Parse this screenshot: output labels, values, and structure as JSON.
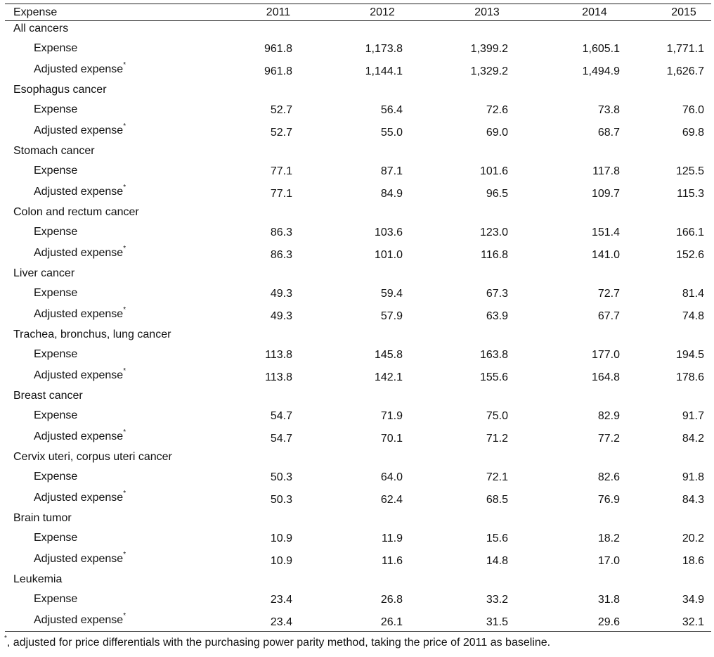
{
  "table": {
    "header": {
      "label": "Expense",
      "years": [
        "2011",
        "2012",
        "2013",
        "2014",
        "2015"
      ]
    },
    "expense_label": "Expense",
    "adjusted_label": "Adjusted expense",
    "asterisk": "*",
    "groups": [
      {
        "name": "All cancers",
        "expense": [
          "961.8",
          "1,173.8",
          "1,399.2",
          "1,605.1",
          "1,771.1"
        ],
        "adjusted": [
          "961.8",
          "1,144.1",
          "1,329.2",
          "1,494.9",
          "1,626.7"
        ]
      },
      {
        "name": "Esophagus cancer",
        "expense": [
          "52.7",
          "56.4",
          "72.6",
          "73.8",
          "76.0"
        ],
        "adjusted": [
          "52.7",
          "55.0",
          "69.0",
          "68.7",
          "69.8"
        ]
      },
      {
        "name": "Stomach cancer",
        "expense": [
          "77.1",
          "87.1",
          "101.6",
          "117.8",
          "125.5"
        ],
        "adjusted": [
          "77.1",
          "84.9",
          "96.5",
          "109.7",
          "115.3"
        ]
      },
      {
        "name": "Colon and rectum cancer",
        "expense": [
          "86.3",
          "103.6",
          "123.0",
          "151.4",
          "166.1"
        ],
        "adjusted": [
          "86.3",
          "101.0",
          "116.8",
          "141.0",
          "152.6"
        ]
      },
      {
        "name": "Liver cancer",
        "expense": [
          "49.3",
          "59.4",
          "67.3",
          "72.7",
          "81.4"
        ],
        "adjusted": [
          "49.3",
          "57.9",
          "63.9",
          "67.7",
          "74.8"
        ]
      },
      {
        "name": "Trachea, bronchus, lung cancer",
        "expense": [
          "113.8",
          "145.8",
          "163.8",
          "177.0",
          "194.5"
        ],
        "adjusted": [
          "113.8",
          "142.1",
          "155.6",
          "164.8",
          "178.6"
        ]
      },
      {
        "name": "Breast cancer",
        "expense": [
          "54.7",
          "71.9",
          "75.0",
          "82.9",
          "91.7"
        ],
        "adjusted": [
          "54.7",
          "70.1",
          "71.2",
          "77.2",
          "84.2"
        ]
      },
      {
        "name": "Cervix uteri, corpus uteri cancer",
        "expense": [
          "50.3",
          "64.0",
          "72.1",
          "82.6",
          "91.8"
        ],
        "adjusted": [
          "50.3",
          "62.4",
          "68.5",
          "76.9",
          "84.3"
        ]
      },
      {
        "name": "Brain tumor",
        "expense": [
          "10.9",
          "11.9",
          "15.6",
          "18.2",
          "20.2"
        ],
        "adjusted": [
          "10.9",
          "11.6",
          "14.8",
          "17.0",
          "18.6"
        ]
      },
      {
        "name": "Leukemia",
        "expense": [
          "23.4",
          "26.8",
          "33.2",
          "31.8",
          "34.9"
        ],
        "adjusted": [
          "23.4",
          "26.1",
          "31.5",
          "29.6",
          "32.1"
        ]
      }
    ]
  },
  "footnote": {
    "marker": "*",
    "text": ", adjusted for price differentials with the purchasing power parity method, taking the price of 2011 as baseline."
  }
}
